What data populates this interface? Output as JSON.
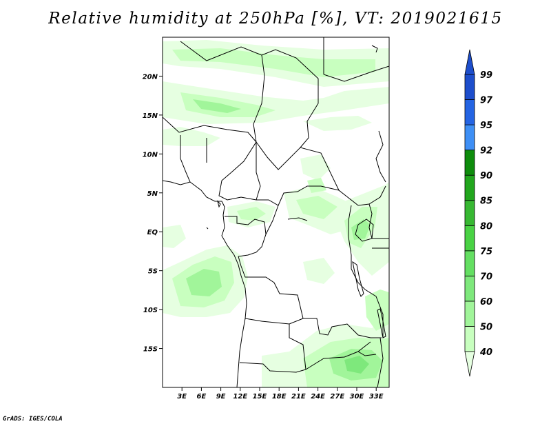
{
  "title": "Relative humidity at 250hPa [%], VT: 2019021615",
  "footer": "GrADS: IGES/COLA",
  "map": {
    "lon_range": [
      0,
      35
    ],
    "lat_range": [
      -20,
      25
    ],
    "lon_ticks": [
      "3E",
      "6E",
      "9E",
      "12E",
      "15E",
      "18E",
      "21E",
      "24E",
      "27E",
      "30E",
      "33E"
    ],
    "lon_tick_values": [
      3,
      6,
      9,
      12,
      15,
      18,
      21,
      24,
      27,
      30,
      33
    ],
    "lat_ticks": [
      "20N",
      "15N",
      "10N",
      "5N",
      "EQ",
      "5S",
      "10S",
      "15S"
    ],
    "lat_tick_values": [
      20,
      15,
      10,
      5,
      0,
      -5,
      -10,
      -15
    ],
    "coastline_color": "#000000"
  },
  "colorbar": {
    "levels": [
      "40",
      "50",
      "60",
      "70",
      "75",
      "80",
      "85",
      "90",
      "92",
      "95",
      "97",
      "99"
    ],
    "colors": [
      "#e6ffe1",
      "#c8ffbf",
      "#a1f59a",
      "#7ee87c",
      "#64df62",
      "#49d244",
      "#37b832",
      "#21a61d",
      "#0e8c0c",
      "#3e8ff5",
      "#2464e3",
      "#1d4ecc"
    ],
    "extends": "both"
  }
}
